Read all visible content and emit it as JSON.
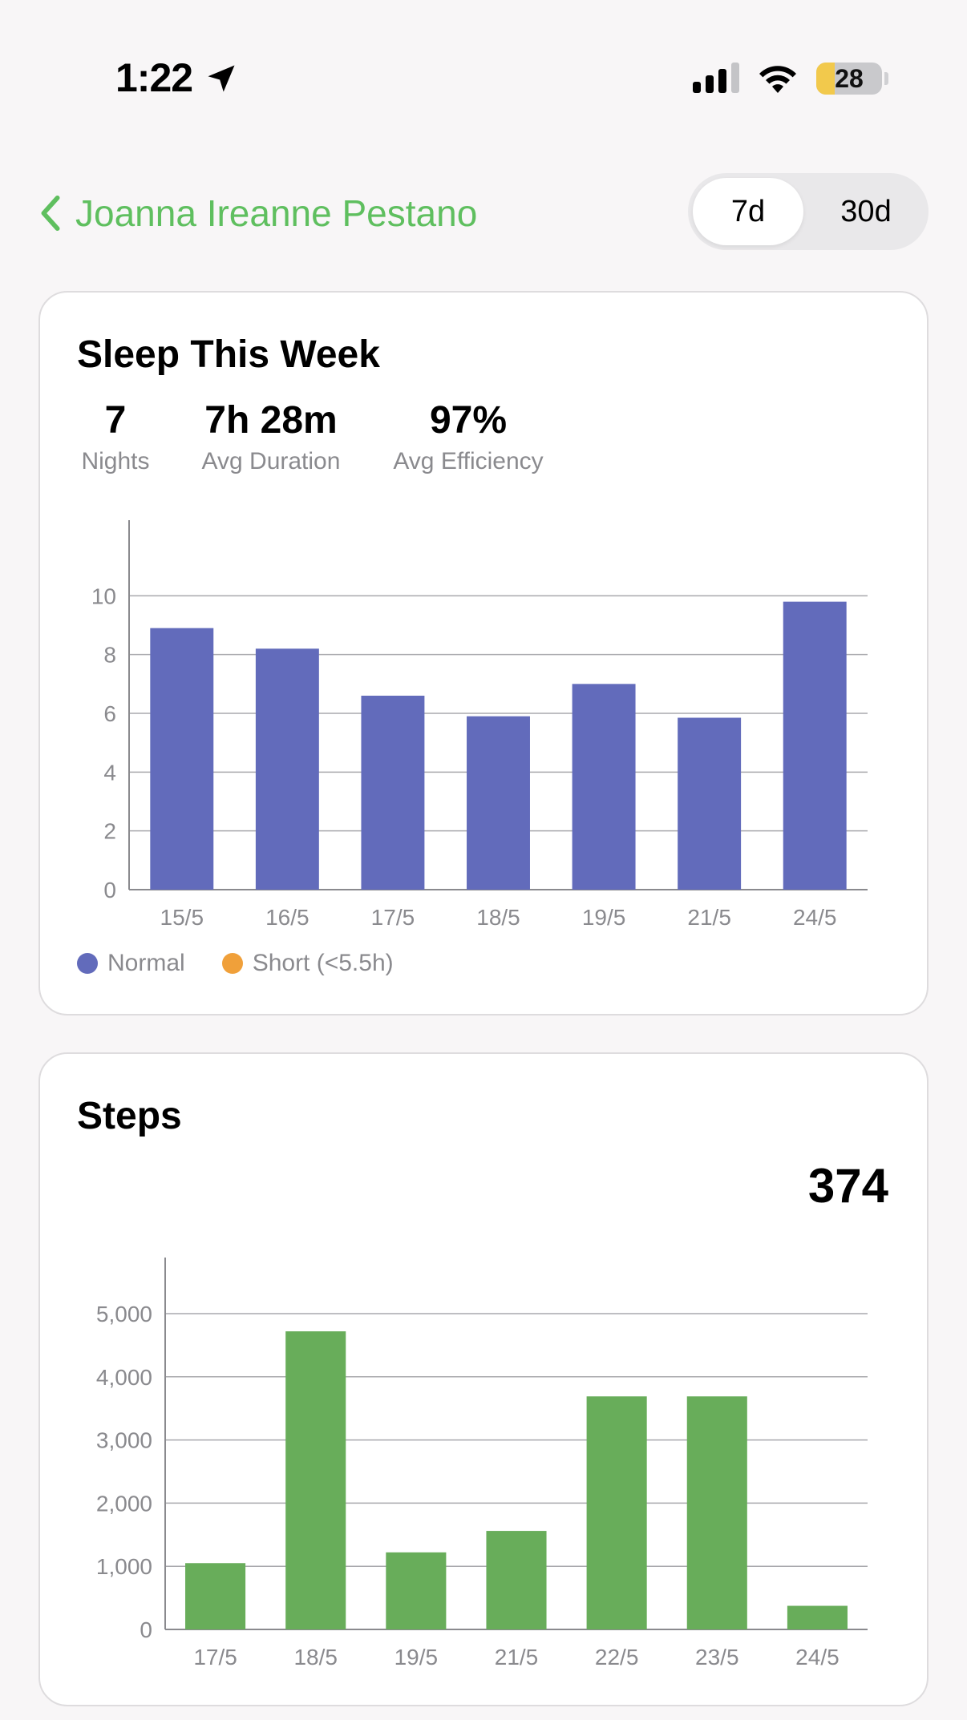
{
  "status_bar": {
    "time": "1:22",
    "battery_level": 28,
    "battery_text": "28",
    "icons": [
      "location-arrow-icon",
      "cellular-signal-icon",
      "wifi-icon",
      "battery-icon"
    ]
  },
  "header": {
    "back_label": "Joanna Ireanne Pestano",
    "accent_color": "#5fbf5f",
    "range_options": [
      "7d",
      "30d"
    ],
    "selected_range": "7d"
  },
  "sleep": {
    "title": "Sleep This Week",
    "stats": [
      {
        "value": "7",
        "label": "Nights"
      },
      {
        "value": "7h 28m",
        "label": "Avg Duration"
      },
      {
        "value": "97%",
        "label": "Avg Efficiency"
      }
    ],
    "legend": [
      {
        "label": "Normal",
        "color": "#626bbb"
      },
      {
        "label": "Short (<5.5h)",
        "color": "#f0a03a"
      }
    ]
  },
  "steps": {
    "title": "Steps",
    "total": "374"
  },
  "chart_data": [
    {
      "type": "bar",
      "title": "Sleep This Week",
      "categories": [
        "15/5",
        "16/5",
        "17/5",
        "18/5",
        "19/5",
        "21/5",
        "24/5"
      ],
      "values": [
        8.9,
        8.2,
        6.6,
        5.9,
        7.0,
        5.85,
        9.8
      ],
      "yticks": [
        "0",
        "2",
        "4",
        "6",
        "8",
        "10"
      ],
      "ylim": [
        0,
        11.7
      ],
      "grid": true,
      "bar_color": "#626bbb",
      "legend_position": "bottom-left"
    },
    {
      "type": "bar",
      "title": "Steps",
      "categories": [
        "17/5",
        "18/5",
        "19/5",
        "21/5",
        "22/5",
        "23/5",
        "24/5"
      ],
      "values": [
        1050,
        4720,
        1220,
        1560,
        3690,
        3690,
        374
      ],
      "yticks": [
        "0",
        "1,000",
        "2,000",
        "3,000",
        "4,000",
        "5,000"
      ],
      "ylim": [
        0,
        5660
      ],
      "grid": true,
      "bar_color": "#68ad5a"
    }
  ]
}
